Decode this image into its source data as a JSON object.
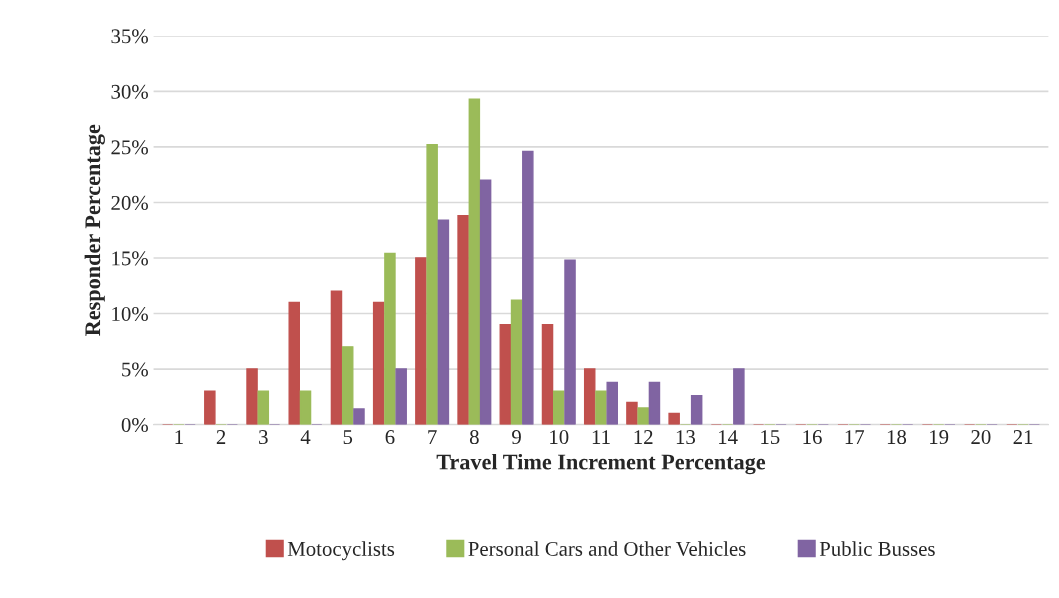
{
  "chart_data": {
    "type": "bar",
    "xlabel": "Travel Time Increment Percentage",
    "ylabel": "Responder Percentage",
    "categories": [
      "1",
      "2",
      "3",
      "4",
      "5",
      "6",
      "7",
      "8",
      "9",
      "10",
      "11",
      "12",
      "13",
      "14",
      "15",
      "16",
      "17",
      "18",
      "19",
      "20",
      "21"
    ],
    "series": [
      {
        "name": "Motocyclists",
        "color": "#c0504d",
        "values": [
          0,
          3,
          5,
          11,
          12,
          11,
          15,
          18.8,
          9,
          9,
          5,
          2,
          1,
          0,
          0,
          0,
          0,
          0,
          0,
          0,
          0
        ]
      },
      {
        "name": "Personal Cars and Other Vehicles",
        "color": "#9bbb59",
        "values": [
          0,
          0,
          3,
          3,
          7,
          15.4,
          25.2,
          29.3,
          11.2,
          3,
          3,
          1.5,
          0,
          0,
          0,
          0,
          0,
          0,
          0,
          0,
          0
        ]
      },
      {
        "name": "Public Busses",
        "color": "#8064a2",
        "values": [
          0,
          0,
          0,
          0,
          1.4,
          5,
          18.4,
          22,
          24.6,
          14.8,
          3.8,
          3.8,
          2.6,
          5,
          0,
          0,
          0,
          0,
          0,
          0,
          0
        ]
      }
    ],
    "ylim": [
      0,
      35
    ],
    "yticks": [
      {
        "value": 0,
        "label": "0%"
      },
      {
        "value": 5,
        "label": "5%"
      },
      {
        "value": 10,
        "label": "10%"
      },
      {
        "value": 15,
        "label": "15%"
      },
      {
        "value": 20,
        "label": "20%"
      },
      {
        "value": 25,
        "label": "25%"
      },
      {
        "value": 30,
        "label": "30%"
      },
      {
        "value": 35,
        "label": "35%"
      }
    ],
    "grid": "y",
    "legend": "bottom"
  }
}
